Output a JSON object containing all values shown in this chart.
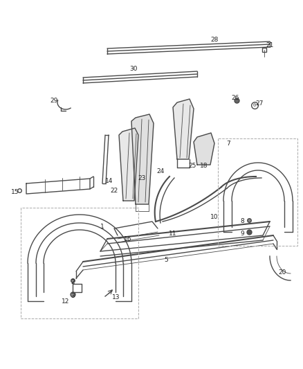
{
  "bg_color": "#ffffff",
  "line_color": "#4a4a4a",
  "label_color": "#222222",
  "fig_width": 4.38,
  "fig_height": 5.33,
  "dpi": 100
}
